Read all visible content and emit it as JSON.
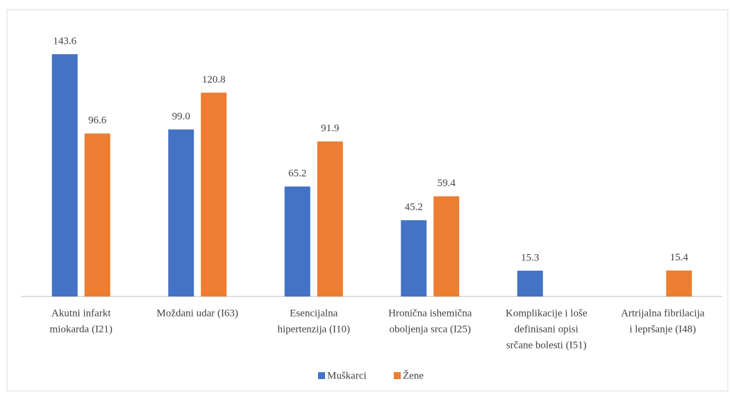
{
  "chart_data": {
    "type": "bar",
    "categories": [
      [
        "Akutni infarkt",
        "miokarda (I21)"
      ],
      [
        "Moždani udar (I63)"
      ],
      [
        "Esencijalna",
        "hipertenzija (I10)"
      ],
      [
        "Hronična ishemična",
        "oboljenja srca (I25)"
      ],
      [
        "Komplikacije i loše",
        "definisani opisi",
        "srčane bolesti (I51)"
      ],
      [
        "Artrijalna fibrilacija",
        "i lepršanje (I48)"
      ]
    ],
    "series": [
      {
        "name": "Muškarci",
        "color": "#4472c4",
        "values": [
          143.6,
          99,
          65.2,
          45.2,
          15.3,
          null
        ],
        "value_labels": [
          "143.6",
          "99.0",
          "65.2",
          "45.2",
          "15.3",
          null
        ]
      },
      {
        "name": "Žene",
        "color": "#ed7d31",
        "values": [
          96.6,
          120.8,
          91.9,
          59.4,
          null,
          15.4
        ],
        "value_labels": [
          "96.6",
          "120.8",
          "91.9",
          "59.4",
          null,
          "15.4"
        ]
      }
    ],
    "legend": "bottom"
  }
}
